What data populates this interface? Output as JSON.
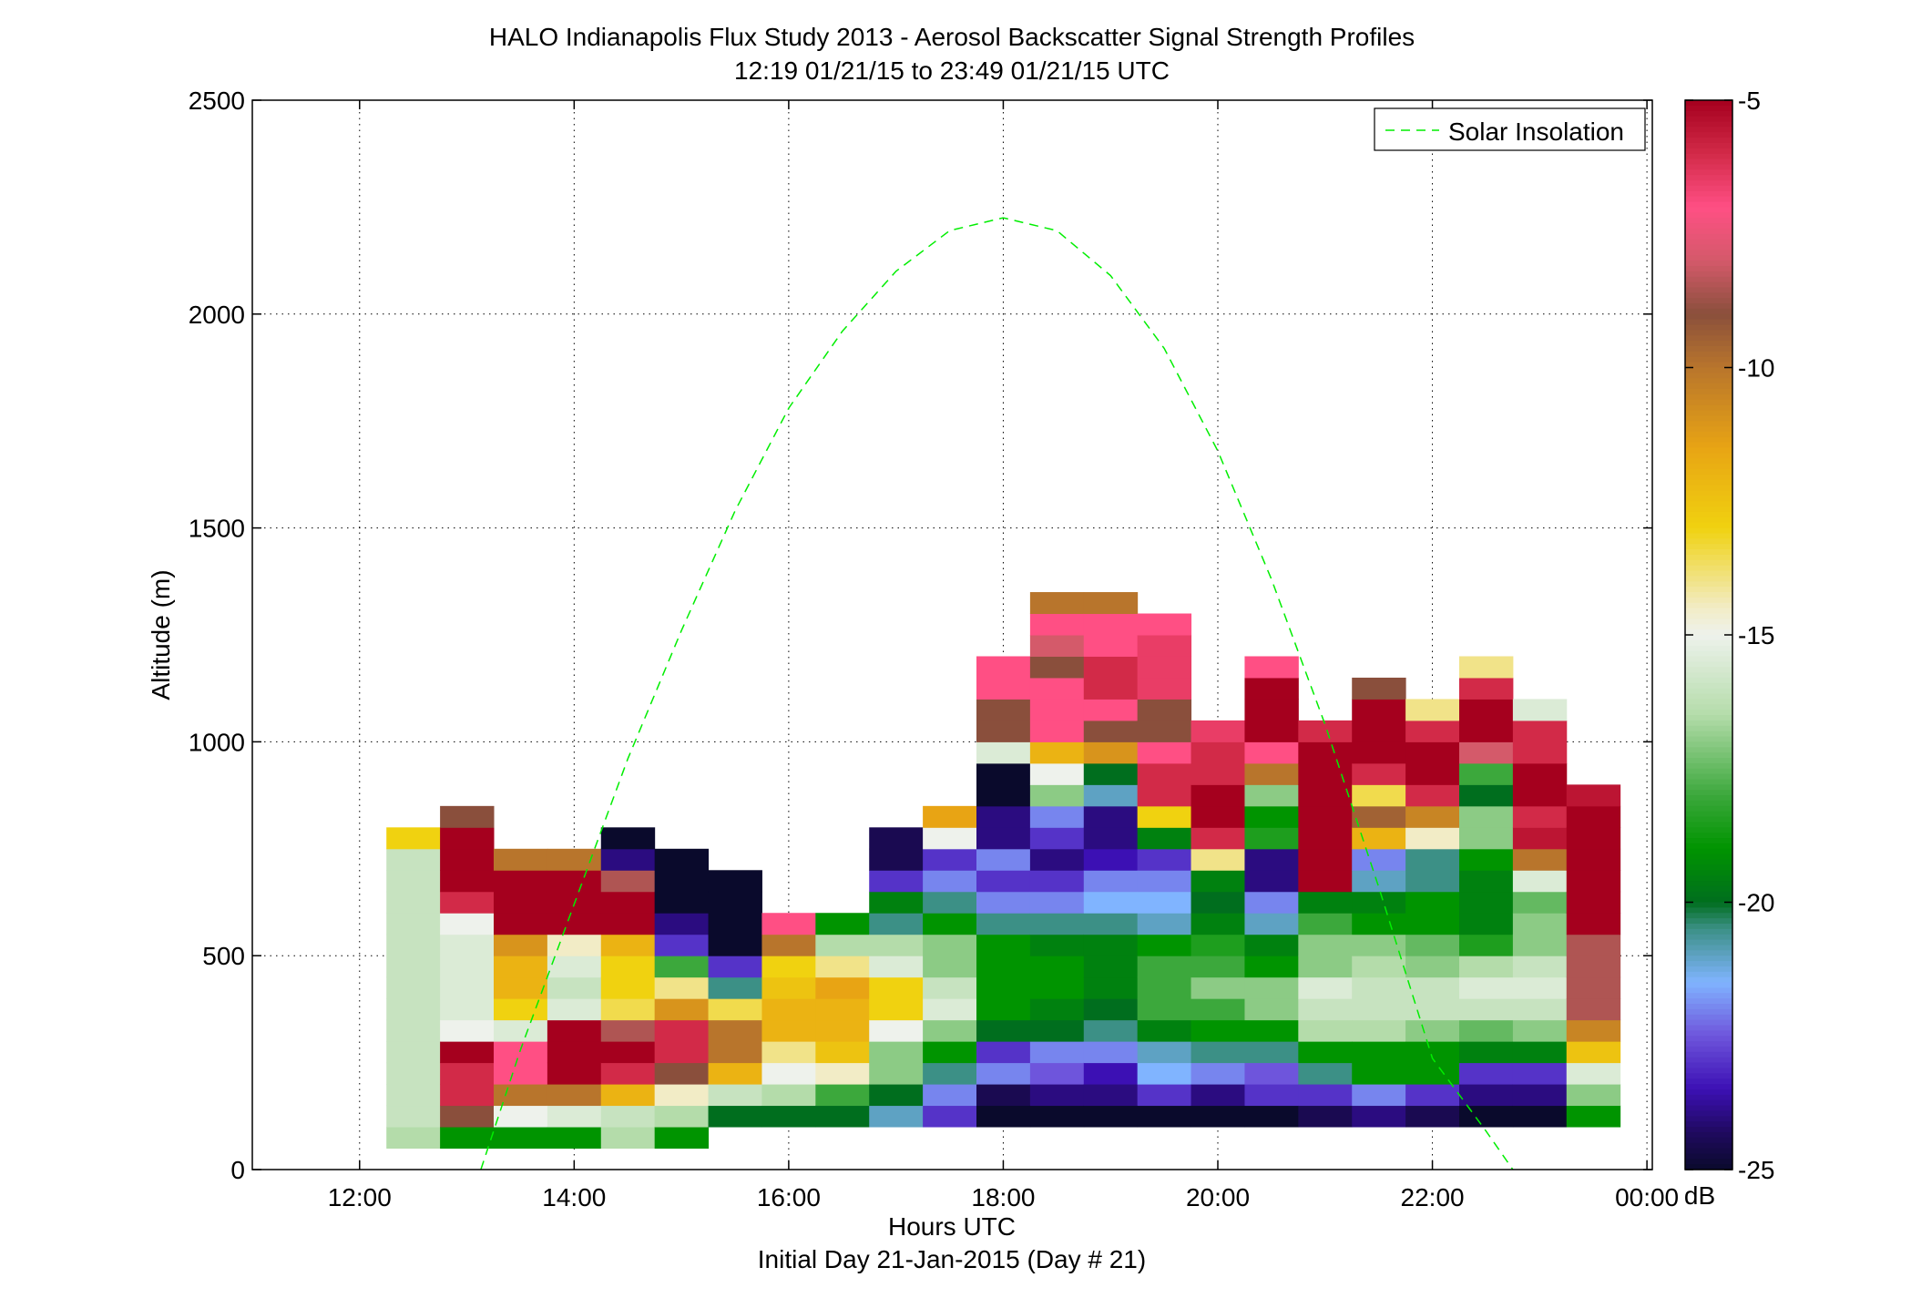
{
  "chart_data": {
    "type": "heatmap",
    "title": "HALO Indianapolis Flux Study 2013 - Aerosol Backscatter Signal Strength Profiles",
    "subtitle": "12:19 01/21/15 to 23:49 01/21/15  UTC",
    "xlabel": "Hours UTC",
    "xlabel2": "Initial Day 21-Jan-2015 (Day # 21)",
    "ylabel": "Altitude (m)",
    "xlim": [
      11,
      24.05
    ],
    "ylim": [
      0,
      2500
    ],
    "xticks": [
      12,
      14,
      16,
      18,
      20,
      22,
      24
    ],
    "xtick_labels": [
      "12:00",
      "14:00",
      "16:00",
      "18:00",
      "20:00",
      "22:00",
      "00:00"
    ],
    "yticks": [
      0,
      500,
      1000,
      1500,
      2000,
      2500
    ],
    "ytick_labels": [
      "0",
      "500",
      "1000",
      "1500",
      "2000",
      "2500"
    ],
    "grid": true,
    "legend": {
      "placement": "top-right",
      "entries": [
        "Solar Insolation"
      ]
    },
    "colorbar": {
      "label": "dB",
      "range": [
        -25,
        -5
      ],
      "ticks": [
        -5,
        -10,
        -15,
        -20,
        -25
      ],
      "tick_labels": [
        "-5",
        "-10",
        "-15",
        "-20",
        "-25"
      ]
    },
    "time_bin_hours": 0.5,
    "altitude_bin_m": 50,
    "profiles": [
      {
        "t": 12.5,
        "bottom": 50,
        "values": [
          -16.5,
          -16,
          -16,
          -16,
          -16,
          -16,
          -16,
          -16,
          -16,
          -16,
          -16,
          -16,
          -16,
          -16,
          -13
        ]
      },
      {
        "t": 13,
        "bottom": 50,
        "values": [
          -19,
          -9,
          -6,
          -6,
          -5,
          -15,
          -15.5,
          -15.5,
          -15.5,
          -15.5,
          -15,
          -6,
          -5,
          -5,
          -5,
          -9
        ]
      },
      {
        "t": 13.5,
        "bottom": 50,
        "values": [
          -19,
          -15,
          -10,
          -7,
          -7,
          -15.5,
          -13,
          -12,
          -12,
          -11,
          -5,
          -5,
          -5,
          -10
        ]
      },
      {
        "t": 14,
        "bottom": 50,
        "values": [
          -19,
          -15.5,
          -10,
          -5,
          -5,
          -5,
          -15.5,
          -16,
          -15.5,
          -14.5,
          -5,
          -5,
          -5,
          -10
        ]
      },
      {
        "t": 14.5,
        "bottom": 50,
        "values": [
          -16.5,
          -16,
          -12,
          -6,
          -5,
          -8.5,
          -13.5,
          -13,
          -13,
          -12,
          -5,
          -5,
          -8.5,
          -24,
          -25
        ]
      },
      {
        "t": 15,
        "bottom": 50,
        "values": [
          -19,
          -16.5,
          -14.5,
          -9,
          -6,
          -6,
          -11,
          -14,
          -18,
          -23,
          -24,
          -25,
          -25,
          -25
        ]
      },
      {
        "t": 15.5,
        "bottom": 100,
        "values": [
          -20,
          -16,
          -12,
          -10,
          -10,
          -13.5,
          -20.5,
          -23,
          -25,
          -25,
          -25,
          -25
        ]
      },
      {
        "t": 16,
        "bottom": 100,
        "values": [
          -20,
          -16.5,
          -15,
          -14,
          -12,
          -12,
          -12.5,
          -13,
          -10,
          -7
        ]
      },
      {
        "t": 16.5,
        "bottom": 100,
        "values": [
          -20,
          -18,
          -14.5,
          -12.5,
          -12,
          -12,
          -11.5,
          -14,
          -16.5,
          -19
        ]
      },
      {
        "t": 17,
        "bottom": 100,
        "values": [
          -21,
          -20,
          -17,
          -17,
          -15,
          -13,
          -13,
          -15.5,
          -16.5,
          -20.5,
          -19.5,
          -23,
          -24.5,
          -24.5
        ]
      },
      {
        "t": 17.5,
        "bottom": 100,
        "values": [
          -23,
          -22,
          -20.5,
          -19,
          -17,
          -15.5,
          -16,
          -17,
          -17,
          -19,
          -20.5,
          -22,
          -23,
          -15,
          -11.5
        ]
      },
      {
        "t": 18,
        "bottom": 100,
        "values": [
          -25,
          -24.5,
          -22,
          -23,
          -20,
          -19,
          -19,
          -19,
          -19,
          -20.5,
          -22,
          -23,
          -22,
          -24,
          -24,
          -25,
          -25,
          -15.5,
          -9,
          -9,
          -7,
          -7
        ]
      },
      {
        "t": 18.5,
        "bottom": 100,
        "values": [
          -25,
          -24,
          -22.5,
          -22,
          -20,
          -19.5,
          -19,
          -19,
          -19.5,
          -20.5,
          -22,
          -23,
          -24,
          -23,
          -22,
          -17,
          -15,
          -12,
          -7,
          -7,
          -7,
          -9,
          -8,
          -7,
          -10
        ]
      },
      {
        "t": 19,
        "bottom": 100,
        "values": [
          -25,
          -24,
          -23.5,
          -22,
          -20.5,
          -20,
          -19.5,
          -19.5,
          -19.5,
          -20.5,
          -21.5,
          -22,
          -23.5,
          -24,
          -24,
          -21,
          -20,
          -11,
          -9,
          -7,
          -6,
          -6,
          -7,
          -7,
          -10
        ]
      },
      {
        "t": 19.5,
        "bottom": 100,
        "values": [
          -25,
          -23,
          -21.5,
          -21,
          -19.5,
          -18,
          -18,
          -18,
          -19,
          -21,
          -21.5,
          -22,
          -23,
          -19.5,
          -13,
          -6,
          -6,
          -7,
          -9,
          -9,
          -6.5,
          -6.5,
          -6.5,
          -7
        ]
      },
      {
        "t": 20,
        "bottom": 100,
        "values": [
          -25,
          -24,
          -22,
          -20.5,
          -19,
          -18,
          -17,
          -18,
          -18.5,
          -19.5,
          -20,
          -19.5,
          -14,
          -6,
          -5,
          -5,
          -6,
          -6,
          -6.5
        ]
      },
      {
        "t": 20.5,
        "bottom": 100,
        "values": [
          -25,
          -23,
          -22.5,
          -20.5,
          -19,
          -17,
          -17,
          -19,
          -19.5,
          -21,
          -22,
          -24,
          -24,
          -18.5,
          -19,
          -17,
          -10,
          -7,
          -5,
          -5,
          -5,
          -7
        ]
      },
      {
        "t": 21,
        "bottom": 100,
        "values": [
          -24.5,
          -23,
          -20.5,
          -19,
          -16.5,
          -16,
          -15.5,
          -17,
          -17,
          -18,
          -19.5,
          -5,
          -5,
          -5,
          -5,
          -5,
          -5,
          -5,
          -6
        ]
      },
      {
        "t": 21.5,
        "bottom": 100,
        "values": [
          -24,
          -22,
          -19,
          -19,
          -16.5,
          -16,
          -16,
          -16.5,
          -17,
          -19,
          -19.5,
          -21,
          -22,
          -12,
          -9.5,
          -13.5,
          -6,
          -5,
          -5,
          -5,
          -9
        ]
      },
      {
        "t": 22,
        "bottom": 100,
        "values": [
          -24.5,
          -23,
          -19,
          -19,
          -17,
          -16,
          -16,
          -17,
          -17.5,
          -19,
          -19,
          -20.5,
          -20.5,
          -14.5,
          -10.5,
          -6,
          -5,
          -5,
          -6,
          -14
        ]
      },
      {
        "t": 22.5,
        "bottom": 100,
        "values": [
          -25,
          -24,
          -23,
          -19.5,
          -17.5,
          -16,
          -15.5,
          -16.5,
          -18.5,
          -19.5,
          -19.5,
          -19.5,
          -19,
          -17,
          -17,
          -20,
          -18,
          -8,
          -5,
          -5,
          -6,
          -14
        ]
      },
      {
        "t": 23,
        "bottom": 100,
        "values": [
          -25,
          -24,
          -23,
          -19.5,
          -17,
          -16,
          -15.5,
          -16,
          -17,
          -17,
          -17.5,
          -15.5,
          -10,
          -5.5,
          -6,
          -5,
          -5,
          -6,
          -6,
          -15.5
        ]
      },
      {
        "t": 23.5,
        "bottom": 100,
        "values": [
          -19,
          -17,
          -15.5,
          -12.5,
          -10.5,
          -8.5,
          -8.5,
          -8.5,
          -8.5,
          -5,
          -5,
          -5,
          -5,
          -5,
          -5,
          -5.5
        ]
      }
    ],
    "series": [
      {
        "name": "Solar Insolation",
        "type": "line",
        "x": [
          13.13,
          13.5,
          14,
          14.5,
          15,
          15.5,
          16,
          16.5,
          17,
          17.5,
          18,
          18.5,
          19,
          19.5,
          20,
          20.5,
          21,
          21.5,
          22,
          22.5,
          22.75
        ],
        "y": [
          0,
          280,
          620,
          960,
          1260,
          1540,
          1780,
          1960,
          2100,
          2195,
          2225,
          2195,
          2090,
          1920,
          1680,
          1380,
          1040,
          660,
          260,
          90,
          0
        ]
      }
    ]
  }
}
